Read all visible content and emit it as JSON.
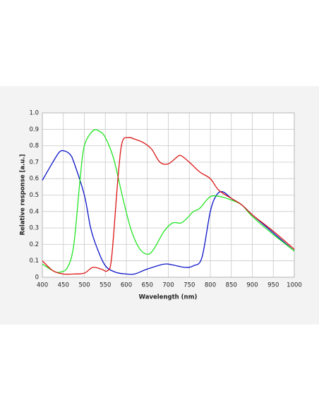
{
  "chart_data": {
    "type": "line",
    "xlabel": "Wavelength (nm)",
    "ylabel": "Relative response [a.u.]",
    "xlim": [
      400,
      1000
    ],
    "ylim": [
      0,
      1
    ],
    "xticks": [
      400,
      450,
      500,
      550,
      600,
      650,
      700,
      750,
      800,
      850,
      900,
      950,
      1000
    ],
    "yticks": [
      0,
      0.1,
      0.2,
      0.3,
      0.4,
      0.5,
      0.6,
      0.7,
      0.8,
      0.9,
      {
        "value": 1,
        "label": "1.0"
      }
    ],
    "grid": true,
    "series": [
      {
        "color": "#0a14c8",
        "x": [
          400,
          425,
          440,
          450,
          465,
          475,
          500,
          515,
          530,
          550,
          575,
          600,
          620,
          650,
          690,
          710,
          740,
          760,
          780,
          800,
          815,
          830,
          850,
          875,
          900,
          950,
          1000
        ],
        "values": [
          0.59,
          0.7,
          0.76,
          0.77,
          0.75,
          0.7,
          0.5,
          0.3,
          0.18,
          0.07,
          0.03,
          0.02,
          0.02,
          0.05,
          0.08,
          0.075,
          0.06,
          0.07,
          0.12,
          0.4,
          0.5,
          0.52,
          0.48,
          0.44,
          0.38,
          0.27,
          0.16
        ]
      },
      {
        "color": "#22e622",
        "x": [
          400,
          425,
          440,
          460,
          475,
          490,
          500,
          520,
          535,
          550,
          570,
          590,
          610,
          630,
          650,
          665,
          690,
          710,
          730,
          745,
          760,
          775,
          800,
          825,
          850,
          875,
          900,
          950,
          1000
        ],
        "values": [
          0.08,
          0.04,
          0.03,
          0.06,
          0.2,
          0.6,
          0.8,
          0.89,
          0.89,
          0.85,
          0.72,
          0.5,
          0.3,
          0.18,
          0.14,
          0.17,
          0.28,
          0.33,
          0.33,
          0.36,
          0.4,
          0.42,
          0.49,
          0.49,
          0.47,
          0.44,
          0.37,
          0.26,
          0.16
        ]
      },
      {
        "color": "#dc1414",
        "x": [
          400,
          425,
          450,
          475,
          500,
          520,
          540,
          555,
          565,
          580,
          590,
          605,
          620,
          640,
          660,
          680,
          700,
          720,
          730,
          750,
          775,
          800,
          820,
          850,
          875,
          900,
          950,
          1000
        ],
        "values": [
          0.1,
          0.04,
          0.02,
          0.02,
          0.025,
          0.06,
          0.05,
          0.04,
          0.12,
          0.6,
          0.82,
          0.85,
          0.84,
          0.82,
          0.78,
          0.7,
          0.69,
          0.73,
          0.74,
          0.7,
          0.64,
          0.6,
          0.53,
          0.48,
          0.44,
          0.38,
          0.28,
          0.17
        ]
      }
    ]
  }
}
